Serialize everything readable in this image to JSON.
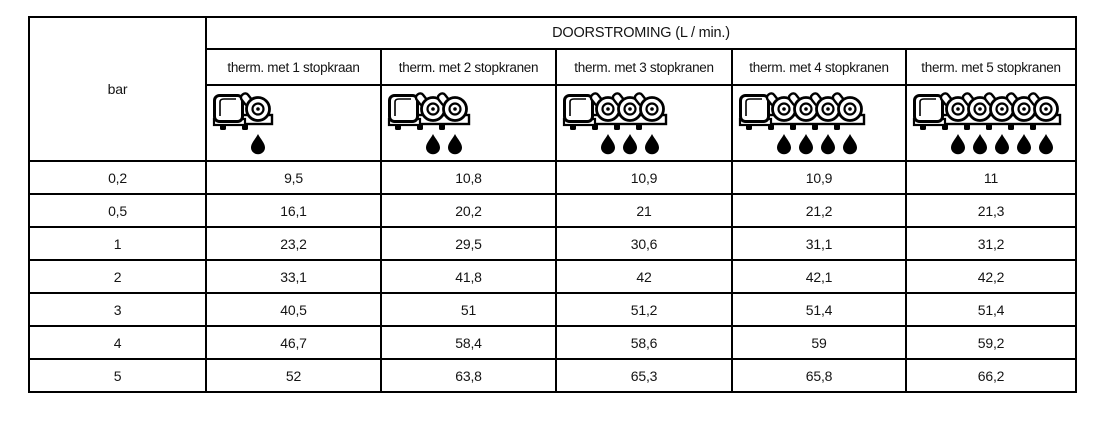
{
  "table": {
    "title": "DOORSTROMING (L / min.)",
    "row_header_label": "bar",
    "columns": [
      {
        "label": "therm. met 1 stopkraan",
        "valves": 1
      },
      {
        "label": "therm. met 2 stopkranen",
        "valves": 2
      },
      {
        "label": "therm. met 3 stopkranen",
        "valves": 3
      },
      {
        "label": "therm. met 4 stopkranen",
        "valves": 4
      },
      {
        "label": "therm. met 5 stopkranen",
        "valves": 5
      }
    ],
    "rows": [
      {
        "bar": "0,2",
        "values": [
          "9,5",
          "10,8",
          "10,9",
          "10,9",
          "11"
        ]
      },
      {
        "bar": "0,5",
        "values": [
          "16,1",
          "20,2",
          "21",
          "21,2",
          "21,3"
        ]
      },
      {
        "bar": "1",
        "values": [
          "23,2",
          "29,5",
          "30,6",
          "31,1",
          "31,2"
        ]
      },
      {
        "bar": "2",
        "values": [
          "33,1",
          "41,8",
          "42",
          "42,1",
          "42,2"
        ]
      },
      {
        "bar": "3",
        "values": [
          "40,5",
          "51",
          "51,2",
          "51,4",
          "51,4"
        ]
      },
      {
        "bar": "4",
        "values": [
          "46,7",
          "58,4",
          "58,6",
          "59",
          "59,2"
        ]
      },
      {
        "bar": "5",
        "values": [
          "52",
          "63,8",
          "65,3",
          "65,8",
          "66,2"
        ]
      }
    ],
    "icons": {
      "valve_icon_name": "thermostatic-valve-icon",
      "drop_icon_name": "water-drop-icon"
    }
  },
  "colors": {
    "border": "#000000",
    "text": "#141414",
    "background": "#ffffff",
    "ink": "#000000"
  }
}
